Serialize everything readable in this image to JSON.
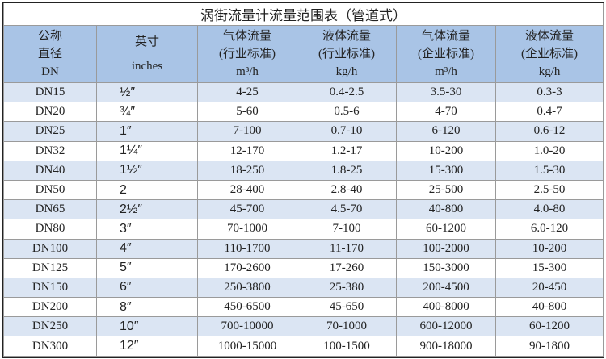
{
  "title": "涡街流量计流量范围表（管道式）",
  "header": [
    {
      "line1": "公称",
      "line2": "直径",
      "line3": "DN"
    },
    {
      "line1": "英寸",
      "line2": "",
      "line3": "inches"
    },
    {
      "line1": "气体流量",
      "line2": "(行业标准)",
      "line3": "m³/h"
    },
    {
      "line1": "液体流量",
      "line2": "(行业标准)",
      "line3": "kg/h"
    },
    {
      "line1": "气体流量",
      "line2": "(企业标准)",
      "line3": "m³/h"
    },
    {
      "line1": "液体流量",
      "line2": "(企业标准)",
      "line3": "kg/h"
    }
  ],
  "rows": [
    [
      "DN15",
      "½″",
      "4-25",
      "0.4-2.5",
      "3.5-30",
      "0.3-3"
    ],
    [
      "DN20",
      "¾″",
      "5-60",
      "0.5-6",
      "4-70",
      "0.4-7"
    ],
    [
      "DN25",
      "1″",
      "7-100",
      "0.7-10",
      "6-120",
      "0.6-12"
    ],
    [
      "DN32",
      "1¼″",
      "12-170",
      "1.2-17",
      "10-200",
      "1.0-20"
    ],
    [
      "DN40",
      "1½″",
      "18-250",
      "1.8-25",
      "15-300",
      "1.5-30"
    ],
    [
      "DN50",
      "2",
      "28-400",
      "2.8-40",
      "25-500",
      "2.5-50"
    ],
    [
      "DN65",
      "2½″",
      "45-700",
      "4.5-70",
      "40-800",
      "4.0-80"
    ],
    [
      "DN80",
      "3″",
      "70-1000",
      "7-100",
      "60-1200",
      "6.0-120"
    ],
    [
      "DN100",
      "4″",
      "110-1700",
      "11-170",
      "100-2000",
      "10-200"
    ],
    [
      "DN125",
      "5″",
      "170-2600",
      "17-260",
      "150-3000",
      "15-300"
    ],
    [
      "DN150",
      "6″",
      "250-3800",
      "25-380",
      "200-4500",
      "20-450"
    ],
    [
      "DN200",
      "8″",
      "450-6500",
      "45-650",
      "400-8000",
      "40-800"
    ],
    [
      "DN250",
      "10″",
      "700-10000",
      "70-1000",
      "600-12000",
      "60-1200"
    ],
    [
      "DN300",
      "12″",
      "1000-15000",
      "100-1500",
      "900-18000",
      "90-1800"
    ]
  ],
  "colors": {
    "header_bg": "#a9c4e6",
    "stripe_bg": "#dbe5f3"
  }
}
